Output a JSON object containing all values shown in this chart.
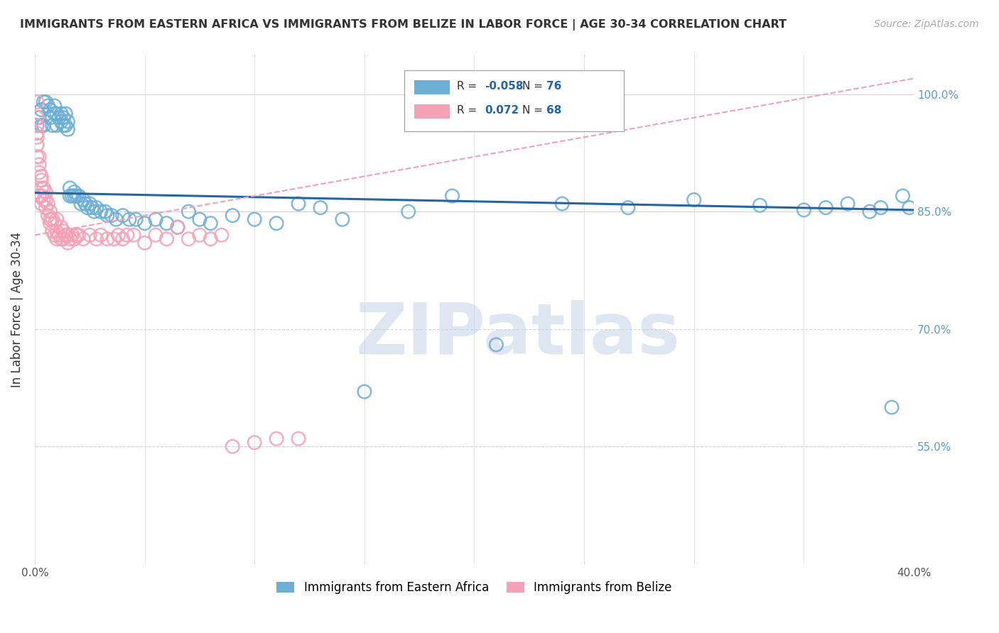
{
  "title": "IMMIGRANTS FROM EASTERN AFRICA VS IMMIGRANTS FROM BELIZE IN LABOR FORCE | AGE 30-34 CORRELATION CHART",
  "source": "Source: ZipAtlas.com",
  "ylabel": "In Labor Force | Age 30-34",
  "xlim": [
    0.0,
    0.4
  ],
  "ylim": [
    0.4,
    1.05
  ],
  "blue_R": -0.058,
  "blue_N": 76,
  "pink_R": 0.072,
  "pink_N": 68,
  "blue_color": "#6baed6",
  "pink_color": "#f4a0b5",
  "blue_legend": "Immigrants from Eastern Africa",
  "pink_legend": "Immigrants from Belize",
  "watermark": "ZIPatlas",
  "watermark_color": "#c8d8e8",
  "blue_scatter_x": [
    0.001,
    0.002,
    0.003,
    0.003,
    0.004,
    0.004,
    0.005,
    0.006,
    0.007,
    0.007,
    0.008,
    0.009,
    0.009,
    0.01,
    0.01,
    0.011,
    0.012,
    0.012,
    0.013,
    0.013,
    0.014,
    0.014,
    0.015,
    0.015,
    0.016,
    0.016,
    0.017,
    0.018,
    0.018,
    0.019,
    0.02,
    0.021,
    0.022,
    0.023,
    0.024,
    0.025,
    0.026,
    0.027,
    0.028,
    0.03,
    0.032,
    0.033,
    0.035,
    0.037,
    0.04,
    0.043,
    0.046,
    0.05,
    0.055,
    0.06,
    0.065,
    0.07,
    0.075,
    0.08,
    0.09,
    0.1,
    0.11,
    0.12,
    0.13,
    0.14,
    0.15,
    0.17,
    0.19,
    0.21,
    0.24,
    0.27,
    0.3,
    0.33,
    0.35,
    0.36,
    0.37,
    0.38,
    0.385,
    0.39,
    0.395,
    0.398
  ],
  "blue_scatter_y": [
    0.96,
    0.97,
    0.96,
    0.98,
    0.96,
    0.99,
    0.99,
    0.985,
    0.97,
    0.98,
    0.96,
    0.975,
    0.985,
    0.96,
    0.975,
    0.97,
    0.965,
    0.975,
    0.96,
    0.97,
    0.96,
    0.975,
    0.955,
    0.965,
    0.87,
    0.88,
    0.87,
    0.87,
    0.875,
    0.87,
    0.87,
    0.86,
    0.865,
    0.86,
    0.855,
    0.86,
    0.855,
    0.85,
    0.855,
    0.85,
    0.85,
    0.845,
    0.845,
    0.84,
    0.845,
    0.84,
    0.84,
    0.835,
    0.84,
    0.835,
    0.83,
    0.85,
    0.84,
    0.835,
    0.845,
    0.84,
    0.835,
    0.86,
    0.855,
    0.84,
    0.62,
    0.85,
    0.87,
    0.68,
    0.86,
    0.855,
    0.865,
    0.858,
    0.852,
    0.855,
    0.86,
    0.85,
    0.855,
    0.6,
    0.87,
    0.855
  ],
  "pink_scatter_x": [
    0.001,
    0.001,
    0.001,
    0.001,
    0.001,
    0.001,
    0.001,
    0.002,
    0.002,
    0.002,
    0.002,
    0.003,
    0.003,
    0.003,
    0.003,
    0.003,
    0.004,
    0.004,
    0.005,
    0.005,
    0.005,
    0.006,
    0.006,
    0.007,
    0.007,
    0.007,
    0.008,
    0.008,
    0.009,
    0.009,
    0.01,
    0.01,
    0.01,
    0.011,
    0.012,
    0.012,
    0.013,
    0.013,
    0.014,
    0.015,
    0.015,
    0.016,
    0.017,
    0.018,
    0.019,
    0.02,
    0.022,
    0.025,
    0.028,
    0.03,
    0.033,
    0.036,
    0.038,
    0.04,
    0.042,
    0.045,
    0.05,
    0.055,
    0.06,
    0.065,
    0.07,
    0.075,
    0.08,
    0.085,
    0.09,
    0.1,
    0.11,
    0.12
  ],
  "pink_scatter_y": [
    0.99,
    0.97,
    0.96,
    0.95,
    0.945,
    0.935,
    0.92,
    0.92,
    0.91,
    0.9,
    0.87,
    0.895,
    0.89,
    0.88,
    0.87,
    0.86,
    0.88,
    0.865,
    0.875,
    0.865,
    0.855,
    0.86,
    0.845,
    0.85,
    0.84,
    0.835,
    0.84,
    0.825,
    0.835,
    0.82,
    0.825,
    0.815,
    0.84,
    0.82,
    0.815,
    0.83,
    0.815,
    0.825,
    0.82,
    0.81,
    0.82,
    0.815,
    0.82,
    0.815,
    0.82,
    0.82,
    0.815,
    0.82,
    0.815,
    0.82,
    0.815,
    0.815,
    0.82,
    0.815,
    0.82,
    0.82,
    0.81,
    0.82,
    0.815,
    0.83,
    0.815,
    0.82,
    0.815,
    0.82,
    0.55,
    0.555,
    0.56,
    0.56
  ],
  "blue_trend_x": [
    0.0,
    0.4
  ],
  "blue_trend_y": [
    0.874,
    0.852
  ],
  "pink_trend_x": [
    0.0,
    0.4
  ],
  "pink_trend_y": [
    0.82,
    1.02
  ]
}
